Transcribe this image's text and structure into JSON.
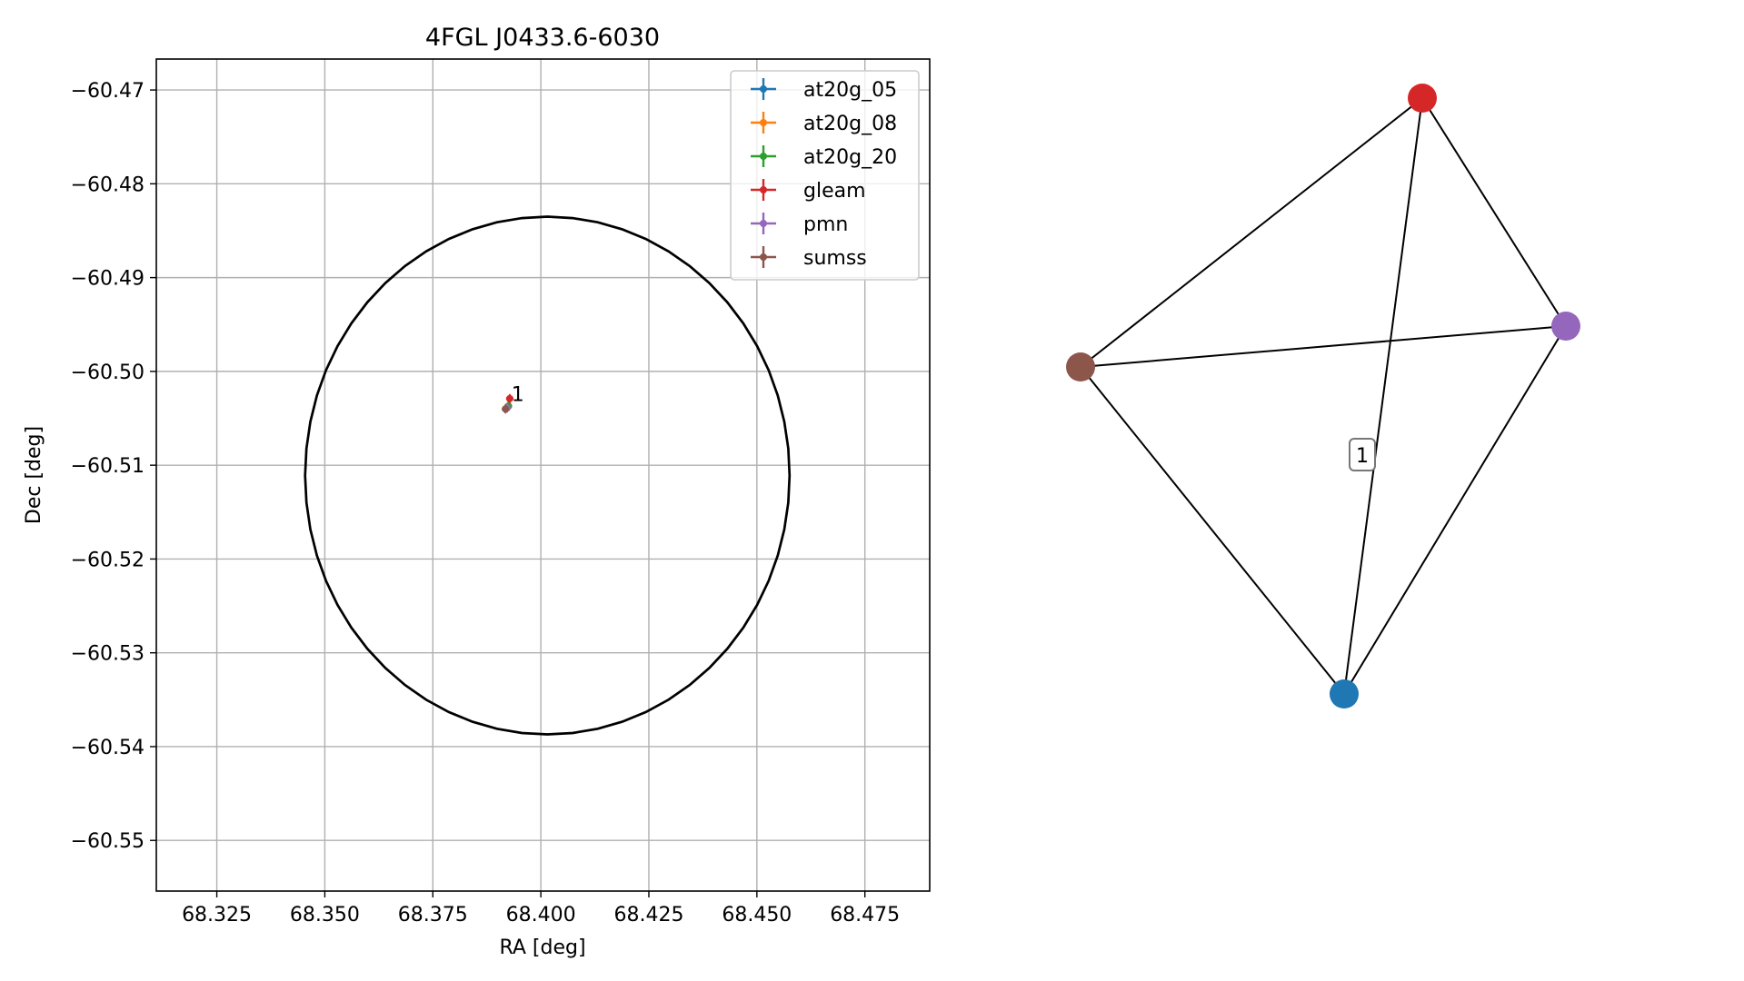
{
  "chart_data": [
    {
      "type": "scatter",
      "title": "4FGL J0433.6-6030",
      "xlabel": "RA [deg]",
      "ylabel": "Dec [deg]",
      "xlim": [
        68.311,
        68.49
      ],
      "ylim": [
        -60.5554,
        -60.4667
      ],
      "xticks": [
        "68.325",
        "68.350",
        "68.375",
        "68.400",
        "68.425",
        "68.450",
        "68.475"
      ],
      "xtick_values": [
        68.325,
        68.35,
        68.375,
        68.4,
        68.425,
        68.45,
        68.475
      ],
      "yticks": [
        "−60.47",
        "−60.48",
        "−60.49",
        "−60.50",
        "−60.51",
        "−60.52",
        "−60.53",
        "−60.54",
        "−60.55"
      ],
      "ytick_values": [
        -60.47,
        -60.48,
        -60.49,
        -60.5,
        -60.51,
        -60.52,
        -60.53,
        -60.54,
        -60.55
      ],
      "grid": true,
      "legend_position": "top-right",
      "series": [
        {
          "name": "at20g_05",
          "color": "#1f77b4",
          "x": 68.3925,
          "y": -60.5037
        },
        {
          "name": "at20g_08",
          "color": "#ff7f0e",
          "x": 68.3925,
          "y": -60.5037
        },
        {
          "name": "at20g_20",
          "color": "#2ca02c",
          "x": 68.3925,
          "y": -60.5037
        },
        {
          "name": "gleam",
          "color": "#d62728",
          "x": 68.3928,
          "y": -60.5029
        },
        {
          "name": "pmn",
          "color": "#9467bd",
          "x": 68.3922,
          "y": -60.5039
        },
        {
          "name": "sumss",
          "color": "#8c564b",
          "x": 68.3918,
          "y": -60.504
        }
      ],
      "circle": {
        "center_ra": 68.4015,
        "center_dec": -60.5111,
        "radius_dec": 0.0276
      },
      "annotation": {
        "text": "1",
        "x": 68.3932,
        "y": -60.5025
      }
    },
    {
      "type": "network",
      "nodes": [
        {
          "id": "gleam",
          "color": "#d62728"
        },
        {
          "id": "pmn",
          "color": "#9467bd"
        },
        {
          "id": "sumss",
          "color": "#8c564b"
        },
        {
          "id": "at20g",
          "color": "#1f77b4"
        }
      ],
      "edges": [
        [
          "gleam",
          "pmn"
        ],
        [
          "gleam",
          "sumss"
        ],
        [
          "gleam",
          "at20g"
        ],
        [
          "pmn",
          "sumss"
        ],
        [
          "pmn",
          "at20g"
        ],
        [
          "sumss",
          "at20g"
        ]
      ],
      "label": "1"
    }
  ]
}
